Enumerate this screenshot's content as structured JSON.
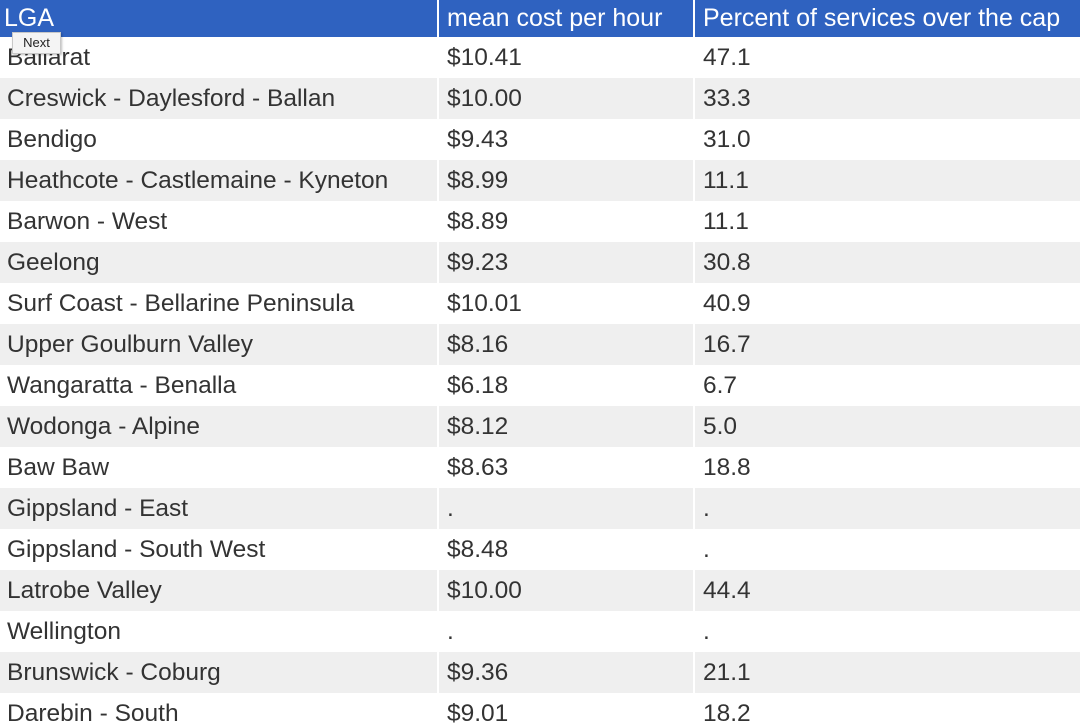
{
  "table": {
    "headers": [
      "LGA",
      "mean cost per hour",
      "Percent of services over the cap"
    ],
    "rows": [
      [
        "Ballarat",
        "$10.41",
        "47.1"
      ],
      [
        "Creswick - Daylesford - Ballan",
        "$10.00",
        "33.3"
      ],
      [
        "Bendigo",
        "$9.43",
        "31.0"
      ],
      [
        "Heathcote - Castlemaine - Kyneton",
        "$8.99",
        "11.1"
      ],
      [
        "Barwon - West",
        "$8.89",
        "11.1"
      ],
      [
        "Geelong",
        "$9.23",
        "30.8"
      ],
      [
        "Surf Coast - Bellarine Peninsula",
        "$10.01",
        "40.9"
      ],
      [
        "Upper Goulburn Valley",
        "$8.16",
        "16.7"
      ],
      [
        "Wangaratta - Benalla",
        "$6.18",
        "6.7"
      ],
      [
        "Wodonga - Alpine",
        "$8.12",
        "5.0"
      ],
      [
        "Baw Baw",
        "$8.63",
        "18.8"
      ],
      [
        "Gippsland - East",
        ".",
        "."
      ],
      [
        "Gippsland - South West",
        "$8.48",
        "."
      ],
      [
        "Latrobe Valley",
        "$10.00",
        "44.4"
      ],
      [
        "Wellington",
        ".",
        "."
      ],
      [
        "Brunswick - Coburg",
        "$9.36",
        "21.1"
      ],
      [
        "Darebin - South",
        "$9.01",
        "18.2"
      ]
    ]
  },
  "tooltip": {
    "label": "Next"
  },
  "colors": {
    "header_bg": "#2f62c0",
    "header_text": "#ffffff",
    "stripe": "#efefef"
  }
}
